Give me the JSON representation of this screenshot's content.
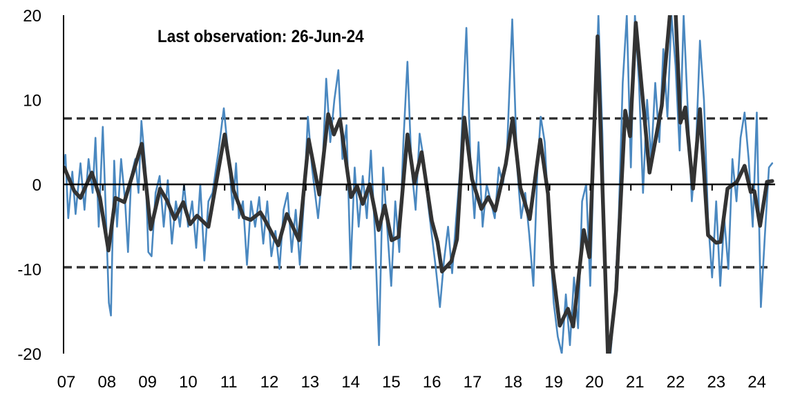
{
  "chart_data": {
    "type": "line",
    "title": "",
    "annotation": "Last observation: 26-Jun-24",
    "xlabel": "",
    "ylabel": "",
    "xlim": [
      2007,
      2024.5
    ],
    "ylim": [
      -20,
      20
    ],
    "yticks": [
      20,
      10,
      0,
      -10,
      -20
    ],
    "ytick_labels": [
      "20",
      "10",
      "0",
      "-10",
      "-20"
    ],
    "xticks": [
      2007,
      2008,
      2009,
      2010,
      2011,
      2012,
      2013,
      2014,
      2015,
      2016,
      2017,
      2018,
      2019,
      2020,
      2021,
      2022,
      2023,
      2024
    ],
    "xtick_labels": [
      "07",
      "08",
      "09",
      "10",
      "11",
      "12",
      "13",
      "14",
      "15",
      "16",
      "17",
      "18",
      "19",
      "20",
      "21",
      "22",
      "23",
      "24"
    ],
    "grid": false,
    "reference_lines": [
      {
        "y": 0,
        "style": "solid"
      },
      {
        "y": 7.8,
        "style": "dashed"
      },
      {
        "y": -9.8,
        "style": "dashed"
      }
    ],
    "colors": {
      "raw": "#4a88c0",
      "smoothed": "#333333",
      "reference": "#333333"
    },
    "series": [
      {
        "role": "raw",
        "points": [
          [
            2007.0,
            1
          ],
          [
            2007.08,
            3.5
          ],
          [
            2007.15,
            -4
          ],
          [
            2007.25,
            1.5
          ],
          [
            2007.33,
            -3.5
          ],
          [
            2007.45,
            2.5
          ],
          [
            2007.55,
            -3
          ],
          [
            2007.65,
            3
          ],
          [
            2007.75,
            -1
          ],
          [
            2007.82,
            5.5
          ],
          [
            2007.9,
            -5
          ],
          [
            2008.0,
            6.8
          ],
          [
            2008.08,
            -4
          ],
          [
            2008.15,
            -14
          ],
          [
            2008.2,
            -15.5
          ],
          [
            2008.28,
            2.8
          ],
          [
            2008.35,
            -5
          ],
          [
            2008.45,
            3
          ],
          [
            2008.55,
            -2
          ],
          [
            2008.62,
            -8
          ],
          [
            2008.7,
            1
          ],
          [
            2008.8,
            3
          ],
          [
            2008.88,
            -1
          ],
          [
            2008.95,
            7.5
          ],
          [
            2009.05,
            2
          ],
          [
            2009.12,
            -8
          ],
          [
            2009.2,
            -8.5
          ],
          [
            2009.3,
            -1
          ],
          [
            2009.4,
            1
          ],
          [
            2009.5,
            -5
          ],
          [
            2009.6,
            0.5
          ],
          [
            2009.7,
            -7
          ],
          [
            2009.8,
            -2
          ],
          [
            2009.9,
            -5
          ],
          [
            2010.0,
            0
          ],
          [
            2010.1,
            -5
          ],
          [
            2010.2,
            -2
          ],
          [
            2010.3,
            -7.5
          ],
          [
            2010.4,
            0
          ],
          [
            2010.5,
            -9
          ],
          [
            2010.6,
            -2
          ],
          [
            2010.7,
            -1
          ],
          [
            2010.85,
            4
          ],
          [
            2010.98,
            9
          ],
          [
            2011.1,
            3
          ],
          [
            2011.2,
            -3
          ],
          [
            2011.28,
            2.5
          ],
          [
            2011.35,
            -4
          ],
          [
            2011.45,
            -2
          ],
          [
            2011.55,
            -9.5
          ],
          [
            2011.65,
            -2
          ],
          [
            2011.75,
            -5
          ],
          [
            2011.85,
            -1.5
          ],
          [
            2011.95,
            -7
          ],
          [
            2012.05,
            -2
          ],
          [
            2012.15,
            -8.5
          ],
          [
            2012.25,
            -5.5
          ],
          [
            2012.35,
            -10
          ],
          [
            2012.45,
            -3
          ],
          [
            2012.55,
            -1
          ],
          [
            2012.65,
            -8
          ],
          [
            2012.75,
            -3
          ],
          [
            2012.85,
            -9.5
          ],
          [
            2012.95,
            -2
          ],
          [
            2013.05,
            8
          ],
          [
            2013.15,
            2
          ],
          [
            2013.3,
            -4
          ],
          [
            2013.4,
            1
          ],
          [
            2013.5,
            12.5
          ],
          [
            2013.6,
            5
          ],
          [
            2013.7,
            10
          ],
          [
            2013.8,
            13.5
          ],
          [
            2013.9,
            3
          ],
          [
            2014.0,
            7
          ],
          [
            2014.1,
            -10
          ],
          [
            2014.2,
            2
          ],
          [
            2014.3,
            -5
          ],
          [
            2014.4,
            1
          ],
          [
            2014.5,
            -4
          ],
          [
            2014.6,
            4
          ],
          [
            2014.7,
            -6
          ],
          [
            2014.8,
            -19
          ],
          [
            2014.9,
            2
          ],
          [
            2015.0,
            -5
          ],
          [
            2015.1,
            -12
          ],
          [
            2015.2,
            -2
          ],
          [
            2015.3,
            -8
          ],
          [
            2015.4,
            5
          ],
          [
            2015.5,
            14.5
          ],
          [
            2015.6,
            2
          ],
          [
            2015.7,
            -3
          ],
          [
            2015.8,
            6
          ],
          [
            2015.9,
            3
          ],
          [
            2016.0,
            -2
          ],
          [
            2016.1,
            -6
          ],
          [
            2016.2,
            -10
          ],
          [
            2016.3,
            -14.5
          ],
          [
            2016.4,
            -9
          ],
          [
            2016.5,
            -5
          ],
          [
            2016.6,
            -10.5
          ],
          [
            2016.7,
            -4
          ],
          [
            2016.8,
            2
          ],
          [
            2016.95,
            18.5
          ],
          [
            2017.05,
            3
          ],
          [
            2017.15,
            -4
          ],
          [
            2017.25,
            5
          ],
          [
            2017.35,
            -5
          ],
          [
            2017.45,
            0
          ],
          [
            2017.55,
            -2
          ],
          [
            2017.65,
            -4
          ],
          [
            2017.75,
            2
          ],
          [
            2017.85,
            0
          ],
          [
            2017.95,
            4
          ],
          [
            2018.08,
            19.5
          ],
          [
            2018.2,
            2
          ],
          [
            2018.3,
            -4
          ],
          [
            2018.4,
            -1
          ],
          [
            2018.5,
            -6
          ],
          [
            2018.6,
            -12
          ],
          [
            2018.7,
            2
          ],
          [
            2018.78,
            8
          ],
          [
            2018.88,
            5
          ],
          [
            2019.0,
            -6
          ],
          [
            2019.1,
            -14
          ],
          [
            2019.2,
            -18
          ],
          [
            2019.3,
            -20
          ],
          [
            2019.4,
            -13
          ],
          [
            2019.5,
            -19
          ],
          [
            2019.6,
            -11
          ],
          [
            2019.7,
            -17
          ],
          [
            2019.8,
            -2
          ],
          [
            2019.9,
            0
          ],
          [
            2020.0,
            -12
          ],
          [
            2020.1,
            5
          ],
          [
            2020.2,
            20
          ],
          [
            2020.3,
            6
          ],
          [
            2020.4,
            -18
          ],
          [
            2020.5,
            -20
          ],
          [
            2020.6,
            -14
          ],
          [
            2020.7,
            -4
          ],
          [
            2020.8,
            12
          ],
          [
            2020.9,
            20
          ],
          [
            2021.0,
            2
          ],
          [
            2021.1,
            20
          ],
          [
            2021.2,
            12
          ],
          [
            2021.3,
            -1
          ],
          [
            2021.4,
            10
          ],
          [
            2021.5,
            3
          ],
          [
            2021.6,
            12
          ],
          [
            2021.7,
            5
          ],
          [
            2021.8,
            16
          ],
          [
            2021.9,
            8
          ],
          [
            2022.0,
            20
          ],
          [
            2022.1,
            14
          ],
          [
            2022.2,
            4
          ],
          [
            2022.3,
            20
          ],
          [
            2022.4,
            9
          ],
          [
            2022.5,
            -2
          ],
          [
            2022.6,
            4
          ],
          [
            2022.7,
            17
          ],
          [
            2022.8,
            10
          ],
          [
            2022.9,
            -4
          ],
          [
            2023.0,
            -11
          ],
          [
            2023.1,
            -2
          ],
          [
            2023.2,
            -12
          ],
          [
            2023.3,
            -4
          ],
          [
            2023.4,
            -10
          ],
          [
            2023.5,
            3
          ],
          [
            2023.6,
            -2
          ],
          [
            2023.7,
            5.5
          ],
          [
            2023.8,
            8.5
          ],
          [
            2023.9,
            3
          ],
          [
            2024.0,
            -5
          ],
          [
            2024.1,
            8.5
          ],
          [
            2024.2,
            -14.5
          ],
          [
            2024.3,
            -6
          ],
          [
            2024.4,
            2
          ],
          [
            2024.48,
            2.5
          ]
        ]
      },
      {
        "role": "smoothed",
        "points": [
          [
            2007.05,
            2.0
          ],
          [
            2007.3,
            -0.8
          ],
          [
            2007.45,
            -1.6
          ],
          [
            2007.73,
            1.4
          ],
          [
            2007.93,
            -1.6
          ],
          [
            2008.14,
            -7.8
          ],
          [
            2008.31,
            -1.6
          ],
          [
            2008.53,
            -2.1
          ],
          [
            2008.96,
            4.8
          ],
          [
            2009.18,
            -5.3
          ],
          [
            2009.41,
            -0.5
          ],
          [
            2009.58,
            -1.9
          ],
          [
            2009.77,
            -4.1
          ],
          [
            2009.98,
            -2.1
          ],
          [
            2010.15,
            -4.7
          ],
          [
            2010.32,
            -3.7
          ],
          [
            2010.6,
            -5.0
          ],
          [
            2011.0,
            5.9
          ],
          [
            2011.22,
            -0.7
          ],
          [
            2011.47,
            -3.9
          ],
          [
            2011.64,
            -4.2
          ],
          [
            2011.88,
            -3.3
          ],
          [
            2011.98,
            -4.1
          ],
          [
            2012.32,
            -7.2
          ],
          [
            2012.53,
            -3.5
          ],
          [
            2012.83,
            -6.6
          ],
          [
            2013.07,
            5.3
          ],
          [
            2013.33,
            -1.2
          ],
          [
            2013.55,
            8.3
          ],
          [
            2013.69,
            5.9
          ],
          [
            2013.84,
            7.7
          ],
          [
            2014.11,
            -1.5
          ],
          [
            2014.26,
            -0.2
          ],
          [
            2014.4,
            -2.3
          ],
          [
            2014.57,
            0
          ],
          [
            2014.79,
            -5.4
          ],
          [
            2014.94,
            -2.5
          ],
          [
            2015.11,
            -6.6
          ],
          [
            2015.28,
            -6.2
          ],
          [
            2015.5,
            5.9
          ],
          [
            2015.67,
            0.2
          ],
          [
            2015.85,
            3.8
          ],
          [
            2016.1,
            -4.3
          ],
          [
            2016.24,
            -6.8
          ],
          [
            2016.35,
            -10.3
          ],
          [
            2016.58,
            -9.1
          ],
          [
            2016.72,
            -6.5
          ],
          [
            2016.9,
            7.9
          ],
          [
            2017.09,
            0.6
          ],
          [
            2017.32,
            -2.9
          ],
          [
            2017.49,
            -1.5
          ],
          [
            2017.66,
            -3.1
          ],
          [
            2017.92,
            2.4
          ],
          [
            2018.09,
            7.8
          ],
          [
            2018.28,
            -0.4
          ],
          [
            2018.51,
            -4.1
          ],
          [
            2018.77,
            5.3
          ],
          [
            2018.96,
            -1.1
          ],
          [
            2019.07,
            -9.8
          ],
          [
            2019.25,
            -16.7
          ],
          [
            2019.45,
            -14.7
          ],
          [
            2019.58,
            -16.8
          ],
          [
            2019.84,
            -5.4
          ],
          [
            2019.98,
            -8.6
          ],
          [
            2020.18,
            17.5
          ],
          [
            2020.44,
            -21
          ],
          [
            2020.64,
            -12.5
          ],
          [
            2020.86,
            8.7
          ],
          [
            2020.98,
            5.7
          ],
          [
            2021.12,
            19.1
          ],
          [
            2021.46,
            1.4
          ],
          [
            2021.76,
            9.3
          ],
          [
            2021.97,
            20.5
          ],
          [
            2022.03,
            22
          ],
          [
            2022.1,
            20.5
          ],
          [
            2022.22,
            7.3
          ],
          [
            2022.34,
            9.1
          ],
          [
            2022.53,
            -0.5
          ],
          [
            2022.7,
            8.9
          ],
          [
            2022.9,
            -6.0
          ],
          [
            2023.1,
            -6.9
          ],
          [
            2023.21,
            -6.8
          ],
          [
            2023.38,
            -0.5
          ],
          [
            2023.61,
            0.3
          ],
          [
            2023.8,
            2.2
          ],
          [
            2023.95,
            -0.9
          ],
          [
            2024.04,
            -0.8
          ],
          [
            2024.18,
            -4.9
          ],
          [
            2024.35,
            0.3
          ],
          [
            2024.48,
            0.4
          ]
        ]
      }
    ]
  }
}
